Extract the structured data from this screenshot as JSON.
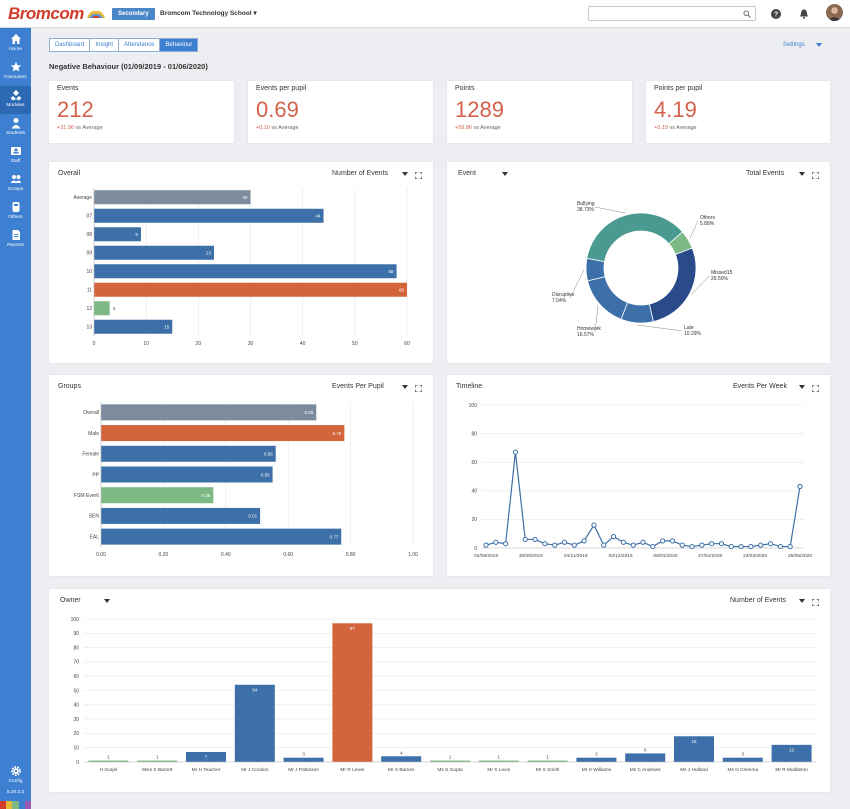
{
  "app": {
    "logo_text": "Bromcom",
    "role_badge": "Secondary",
    "school": "Bromcom Technology School",
    "version": "5.20.3.2"
  },
  "sidebar": {
    "items": [
      {
        "label": "Home",
        "icon": "home-icon"
      },
      {
        "label": "Favourites",
        "icon": "star-icon"
      },
      {
        "label": "Modules",
        "icon": "modules-icon"
      },
      {
        "label": "Students",
        "icon": "student-icon"
      },
      {
        "label": "Staff",
        "icon": "staff-icon"
      },
      {
        "label": "Groups",
        "icon": "groups-icon"
      },
      {
        "label": "Others",
        "icon": "others-icon"
      },
      {
        "label": "Reports",
        "icon": "reports-icon"
      }
    ],
    "config_label": "Config"
  },
  "tabs": [
    "Dashboard",
    "Insight",
    "Attendance",
    "Behaviour"
  ],
  "active_tab": "Behaviour",
  "settings_label": "Settings",
  "page_heading": "Negative Behaviour (01/09/2019 - 01/06/2020)",
  "kpis": [
    {
      "label": "Events",
      "value": "212",
      "delta": "+31.96",
      "suffix": "vs Average"
    },
    {
      "label": "Events per pupil",
      "value": "0.69",
      "delta": "+0.10",
      "suffix": "vs Average"
    },
    {
      "label": "Points",
      "value": "1289",
      "delta": "+59.86",
      "suffix": "vs Average"
    },
    {
      "label": "Points per pupil",
      "value": "4.19",
      "delta": "+0.19",
      "suffix": "vs Average"
    }
  ],
  "colors": {
    "blue": "#3d6fa8",
    "orange": "#d4643c",
    "grey": "#7c8c9c",
    "green": "#7cb985",
    "teal": "#4a9a92",
    "navy": "#2b4a8a",
    "accent": "#3d7fd1"
  },
  "panels": {
    "overall": {
      "title": "Overall",
      "metric": "Number of Events"
    },
    "event": {
      "title": "Event",
      "metric": "Total Events"
    },
    "groups": {
      "title": "Groups",
      "metric": "Events Per Pupil"
    },
    "timeline": {
      "title": "Timeline",
      "metric": "Events Per Week"
    },
    "owner": {
      "title": "Owner",
      "metric": "Number of Events"
    }
  },
  "chart_data": [
    {
      "id": "overall",
      "type": "bar",
      "orientation": "horizontal",
      "categories": [
        "Average",
        "07",
        "08",
        "09",
        "10",
        "11",
        "12",
        "13"
      ],
      "values": [
        30,
        44,
        9,
        23,
        58,
        60,
        3,
        15
      ],
      "bar_colors": [
        "grey",
        "blue",
        "blue",
        "blue",
        "blue",
        "orange",
        "green",
        "blue"
      ],
      "xlim": [
        0,
        60
      ],
      "xticks": [
        0,
        10,
        20,
        30,
        40,
        50,
        60
      ]
    },
    {
      "id": "event",
      "type": "pie",
      "donut": true,
      "slices": [
        {
          "label": "Bullying",
          "value": 38.73,
          "pct": "38.73%",
          "color": "teal"
        },
        {
          "label": "Others",
          "value": 5.88,
          "pct": "5.88%",
          "color": "green"
        },
        {
          "label": "Missed15",
          "value": 29.5,
          "pct": "29.50%",
          "color": "navy"
        },
        {
          "label": "Late",
          "value": 10.29,
          "pct": "10.29%",
          "color": "blue"
        },
        {
          "label": "Homework",
          "value": 16.57,
          "pct": "16.57%",
          "color": "blue"
        },
        {
          "label": "Disruptive",
          "value": 7.04,
          "pct": "7.04%",
          "color": "blue"
        }
      ]
    },
    {
      "id": "groups",
      "type": "bar",
      "orientation": "horizontal",
      "categories": [
        "Overall",
        "Male",
        "Female",
        "PP",
        "FSM Ever6",
        "SEN",
        "EAL"
      ],
      "values": [
        0.69,
        0.78,
        0.56,
        0.55,
        0.36,
        0.51,
        0.77
      ],
      "bar_colors": [
        "grey",
        "orange",
        "blue",
        "blue",
        "green",
        "blue",
        "blue"
      ],
      "xlim": [
        0,
        1
      ],
      "xticks": [
        "0.00",
        "0.20",
        "0.40",
        "0.60",
        "0.80",
        "1.00"
      ]
    },
    {
      "id": "timeline",
      "type": "line",
      "ylim": [
        0,
        100
      ],
      "yticks": [
        0,
        20,
        40,
        60,
        80,
        100
      ],
      "xtick_labels": [
        "02/09/2019",
        "30/09/2019",
        "04/11/2019",
        "02/12/2019",
        "06/01/2020",
        "27/01/2020",
        "23/03/2020",
        "25/05/2020"
      ],
      "values": [
        2,
        4,
        3,
        67,
        6,
        6,
        3,
        2,
        4,
        2,
        5,
        16,
        2,
        8,
        4,
        2,
        4,
        1,
        5,
        5,
        2,
        1,
        2,
        3,
        3,
        1,
        1,
        1,
        2,
        3,
        1,
        1,
        43
      ]
    },
    {
      "id": "owner",
      "type": "bar",
      "categories": [
        "H Gurjel",
        "Miss S Barrett",
        "Mr H Teacher",
        "Mr J Condon",
        "Mr J Pattinson",
        "Mr R Lewis",
        "Mr S Barnes",
        "Ms S Gupta",
        "Mr S Levin",
        "Mr S Smith",
        "Mr S Williams",
        "Ms C Andrews",
        "Ms J Holland",
        "Ms N Cheema",
        "Mr R Middleton"
      ],
      "values": [
        1,
        1,
        7,
        54,
        3,
        97,
        4,
        1,
        1,
        1,
        3,
        6,
        18,
        3,
        12
      ],
      "bar_colors": [
        "green",
        "green",
        "blue",
        "blue",
        "blue",
        "orange",
        "blue",
        "green",
        "green",
        "green",
        "blue",
        "blue",
        "blue",
        "blue",
        "blue"
      ],
      "ylim": [
        0,
        100
      ],
      "yticks": [
        0,
        10,
        20,
        30,
        40,
        50,
        60,
        70,
        80,
        90,
        100
      ]
    }
  ]
}
